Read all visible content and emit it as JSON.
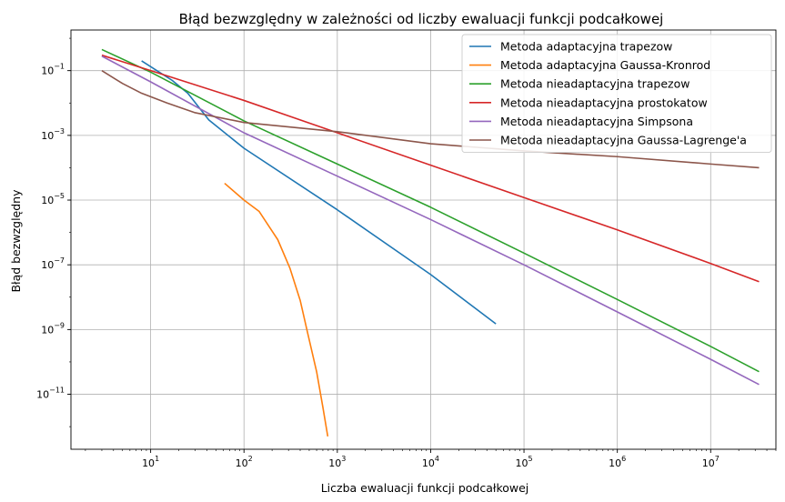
{
  "chart_data": {
    "type": "line",
    "title": "Błąd bezwzględny w zależności od liczby ewaluacji funkcji podcałkowej",
    "xlabel": "Liczba ewaluacji funkcji podcałkowej",
    "ylabel": "Błąd bezwzględny",
    "x_scale": "log",
    "y_scale": "log",
    "xlim": [
      1.4,
      50000000
    ],
    "ylim": [
      2e-13,
      1.8
    ],
    "x_ticks": [
      {
        "value": 10,
        "base": "10",
        "exp": "1"
      },
      {
        "value": 100,
        "base": "10",
        "exp": "2"
      },
      {
        "value": 1000,
        "base": "10",
        "exp": "3"
      },
      {
        "value": 10000,
        "base": "10",
        "exp": "4"
      },
      {
        "value": 100000,
        "base": "10",
        "exp": "5"
      },
      {
        "value": 1000000,
        "base": "10",
        "exp": "6"
      },
      {
        "value": 10000000,
        "base": "10",
        "exp": "7"
      }
    ],
    "y_ticks": [
      {
        "value": 1e-11,
        "base": "10",
        "exp": "−11"
      },
      {
        "value": 1e-09,
        "base": "10",
        "exp": "−9"
      },
      {
        "value": 1e-07,
        "base": "10",
        "exp": "−7"
      },
      {
        "value": 1e-05,
        "base": "10",
        "exp": "−5"
      },
      {
        "value": 0.001,
        "base": "10",
        "exp": "−3"
      },
      {
        "value": 0.1,
        "base": "10",
        "exp": "−1"
      }
    ],
    "grid": true,
    "legend_position": "top-right",
    "series": [
      {
        "name": "Metoda adaptacyjna trapezow",
        "color": "#1f77b4",
        "points": [
          [
            8,
            0.2
          ],
          [
            17,
            0.05
          ],
          [
            25,
            0.02
          ],
          [
            42,
            0.003
          ],
          [
            100,
            0.0004
          ],
          [
            1000,
            5e-06
          ],
          [
            10000,
            5e-08
          ],
          [
            50000,
            1.5e-09
          ]
        ]
      },
      {
        "name": "Metoda adaptacyjna Gaussa-Kronrod",
        "color": "#ff7f0e",
        "points": [
          [
            62,
            3.3e-05
          ],
          [
            100,
            1e-05
          ],
          [
            145,
            4.5e-06
          ],
          [
            230,
            6e-07
          ],
          [
            310,
            8e-08
          ],
          [
            400,
            8e-09
          ],
          [
            480,
            8e-10
          ],
          [
            600,
            5e-11
          ],
          [
            700,
            4e-12
          ],
          [
            790,
            5e-13
          ]
        ]
      },
      {
        "name": "Metoda nieadaptacyjna trapezow",
        "color": "#2ca02c",
        "points": [
          [
            3,
            0.45
          ],
          [
            10,
            0.09
          ],
          [
            100,
            0.0028
          ],
          [
            1000,
            0.00013
          ],
          [
            10000,
            6e-06
          ],
          [
            100000,
            2.3e-07
          ],
          [
            1000000,
            8.5e-09
          ],
          [
            10000000,
            3e-10
          ],
          [
            33000000,
            5e-11
          ]
        ]
      },
      {
        "name": "Metoda nieadaptacyjna prostokatow",
        "color": "#d62728",
        "points": [
          [
            3,
            0.3
          ],
          [
            10,
            0.1
          ],
          [
            100,
            0.012
          ],
          [
            1000,
            0.0012
          ],
          [
            10000,
            0.00012
          ],
          [
            100000,
            1.2e-05
          ],
          [
            1000000,
            1.2e-06
          ],
          [
            10000000,
            1.1e-07
          ],
          [
            33000000,
            3e-08
          ]
        ]
      },
      {
        "name": "Metoda nieadaptacyjna Simpsona",
        "color": "#9467bd",
        "points": [
          [
            3,
            0.28
          ],
          [
            10,
            0.045
          ],
          [
            100,
            0.0012
          ],
          [
            1000,
            5.5e-05
          ],
          [
            10000,
            2.5e-06
          ],
          [
            100000,
            1e-07
          ],
          [
            1000000,
            3.5e-09
          ],
          [
            10000000,
            1.2e-10
          ],
          [
            33000000,
            2e-11
          ]
        ]
      },
      {
        "name": "Metoda nieadaptacyjna Gaussa-Lagrenge'a",
        "color": "#8c564b",
        "points": [
          [
            3,
            0.1
          ],
          [
            5,
            0.04
          ],
          [
            8,
            0.02
          ],
          [
            15,
            0.01
          ],
          [
            30,
            0.005
          ],
          [
            100,
            0.0025
          ],
          [
            1000,
            0.0013
          ],
          [
            10000,
            0.00055
          ],
          [
            100000,
            0.00033
          ],
          [
            1000000,
            0.00022
          ],
          [
            10000000,
            0.00013
          ],
          [
            33000000,
            0.0001
          ]
        ]
      }
    ]
  }
}
